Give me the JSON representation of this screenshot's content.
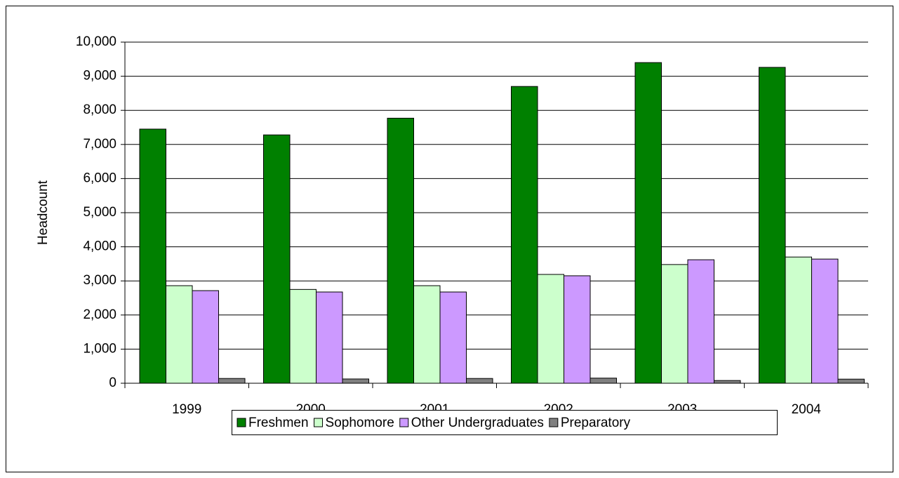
{
  "chart_data": {
    "type": "bar",
    "y_label": "Headcount",
    "categories": [
      "1999",
      "2000",
      "2001",
      "2002",
      "2003",
      "2004"
    ],
    "series": [
      {
        "name": "Freshmen",
        "color": "#008000",
        "values": [
          7450,
          7280,
          7770,
          8700,
          9400,
          9260
        ]
      },
      {
        "name": "Sophomore",
        "color": "#ccffcc",
        "values": [
          2860,
          2750,
          2860,
          3190,
          3480,
          3700
        ]
      },
      {
        "name": "Other Undergraduates",
        "color": "#cc99ff",
        "values": [
          2715,
          2675,
          2675,
          3150,
          3620,
          3640
        ]
      },
      {
        "name": "Preparatory",
        "color": "#808080",
        "values": [
          140,
          125,
          140,
          150,
          80,
          120
        ]
      }
    ],
    "ylim": [
      0,
      10000
    ],
    "yticks": [
      0,
      {
        "value": 1000,
        "label": "1,000"
      },
      {
        "value": 2000,
        "label": "2,000"
      },
      {
        "value": 3000,
        "label": "3,000"
      },
      {
        "value": 4000,
        "label": "4,000"
      },
      {
        "value": 5000,
        "label": "5,000"
      },
      {
        "value": 6000,
        "label": "6,000"
      },
      {
        "value": 7000,
        "label": "7,000"
      },
      {
        "value": 8000,
        "label": "8,000"
      },
      {
        "value": 9000,
        "label": "9,000"
      },
      {
        "value": 10000,
        "label": "10,000"
      }
    ],
    "grid": true,
    "legend": "bottom"
  }
}
